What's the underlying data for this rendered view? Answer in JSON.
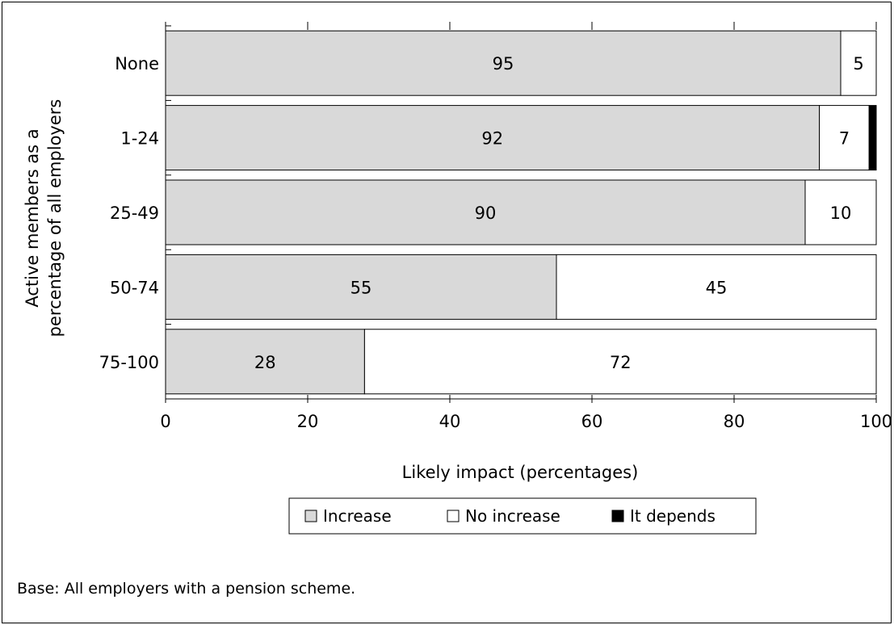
{
  "chart_data": {
    "type": "bar",
    "orientation": "horizontal",
    "stacked": true,
    "categories": [
      "None",
      "1-24",
      "25-49",
      "50-74",
      "75-100"
    ],
    "series": [
      {
        "name": "Increase",
        "values": [
          95,
          92,
          90,
          55,
          28
        ],
        "color": "#d9d9d9"
      },
      {
        "name": "No increase",
        "values": [
          5,
          7,
          10,
          45,
          72
        ],
        "color": "#ffffff"
      },
      {
        "name": "It depends",
        "values": [
          0,
          1,
          0,
          0,
          0
        ],
        "color": "#000000"
      }
    ],
    "data_labels": [
      [
        "95",
        "92",
        "90",
        "55",
        "28"
      ],
      [
        "5",
        "7",
        "10",
        "45",
        "72"
      ],
      [
        "",
        "",
        "",
        "",
        ""
      ]
    ],
    "xlabel": "Likely impact (percentages)",
    "ylabel_lines": [
      "Active members as a",
      "percentage of all employers"
    ],
    "xlim": [
      0,
      100
    ],
    "xticks": [
      0,
      20,
      40,
      60,
      80,
      100
    ],
    "tick_labels": [
      "0",
      "20",
      "40",
      "60",
      "80",
      "100"
    ],
    "legend_position": "bottom",
    "legend_symbols": [
      "▫",
      "□",
      "■"
    ],
    "grid": false
  },
  "note": "Base: All employers with a pension scheme."
}
